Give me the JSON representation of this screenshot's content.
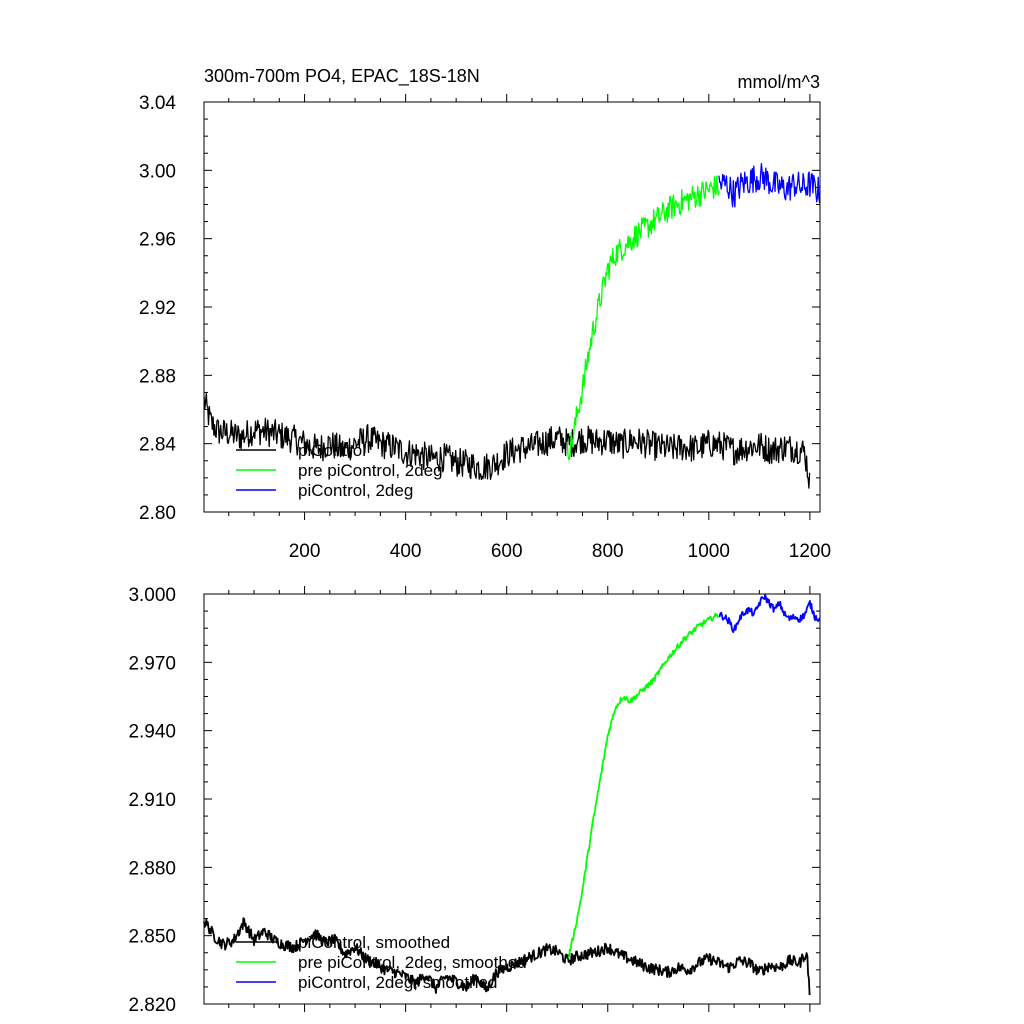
{
  "header": {
    "title": "300m-700m PO4, EPAC_18S-18N",
    "units": "mmol/m^3"
  },
  "colors": {
    "piControl": "#000000",
    "pre_piControl_2deg": "#00ff00",
    "piControl_2deg": "#0000ff"
  },
  "chart_data": [
    {
      "type": "line",
      "title": "300m-700m PO4, EPAC_18S-18N",
      "units_label": "mmol/m^3",
      "xlim": [
        1,
        1220
      ],
      "ylim": [
        2.8,
        3.04
      ],
      "x_tick_values": [
        200,
        400,
        600,
        800,
        1000,
        1200
      ],
      "x_tick_labels": [
        "200",
        "400",
        "600",
        "800",
        "1000",
        "1200"
      ],
      "y_tick_values": [
        2.8,
        2.84,
        2.88,
        2.92,
        2.96,
        3.0,
        3.04
      ],
      "y_tick_labels": [
        "2.80",
        "2.84",
        "2.88",
        "2.92",
        "2.96",
        "3.00",
        "3.04"
      ],
      "legend_position": "bottom-left",
      "series": [
        {
          "name": "piControl",
          "color": "#000000",
          "x": [
            1,
            15,
            30,
            50,
            75,
            100,
            125,
            150,
            175,
            200,
            225,
            250,
            275,
            300,
            325,
            350,
            375,
            400,
            425,
            450,
            475,
            500,
            525,
            550,
            575,
            600,
            625,
            650,
            675,
            700,
            725,
            750,
            775,
            800,
            825,
            850,
            875,
            900,
            925,
            950,
            975,
            1000,
            1025,
            1050,
            1075,
            1100,
            1125,
            1150,
            1175,
            1190,
            1200
          ],
          "y": [
            2.865,
            2.852,
            2.847,
            2.846,
            2.844,
            2.848,
            2.847,
            2.845,
            2.843,
            2.84,
            2.837,
            2.84,
            2.836,
            2.84,
            2.843,
            2.84,
            2.838,
            2.835,
            2.834,
            2.831,
            2.832,
            2.829,
            2.828,
            2.826,
            2.828,
            2.834,
            2.837,
            2.838,
            2.841,
            2.843,
            2.84,
            2.843,
            2.841,
            2.842,
            2.839,
            2.842,
            2.84,
            2.838,
            2.837,
            2.838,
            2.837,
            2.84,
            2.839,
            2.836,
            2.838,
            2.839,
            2.836,
            2.838,
            2.837,
            2.835,
            2.817
          ],
          "noise": 0.0085
        },
        {
          "name": "pre piControl, 2deg",
          "color": "#00ff00",
          "x": [
            720,
            730,
            740,
            750,
            760,
            770,
            780,
            790,
            800,
            815,
            830,
            845,
            860,
            875,
            890,
            905,
            920,
            935,
            950,
            965,
            980,
            995,
            1010,
            1020
          ],
          "y": [
            2.835,
            2.842,
            2.858,
            2.872,
            2.889,
            2.905,
            2.918,
            2.93,
            2.942,
            2.951,
            2.955,
            2.959,
            2.963,
            2.966,
            2.97,
            2.973,
            2.977,
            2.98,
            2.982,
            2.984,
            2.986,
            2.988,
            2.99,
            2.99
          ],
          "noise": 0.0075
        },
        {
          "name": "piControl, 2deg",
          "color": "#0000ff",
          "x": [
            1020,
            1035,
            1050,
            1065,
            1080,
            1095,
            1110,
            1125,
            1140,
            1155,
            1170,
            1185,
            1200,
            1215,
            1220
          ],
          "y": [
            2.992,
            2.992,
            2.986,
            2.992,
            2.994,
            2.996,
            2.996,
            2.992,
            2.99,
            2.989,
            2.992,
            2.99,
            2.992,
            2.988,
            2.988
          ],
          "noise": 0.0085
        }
      ],
      "legend": [
        "piControl",
        "pre piControl, 2deg",
        "piControl, 2deg"
      ]
    },
    {
      "type": "line",
      "xlim": [
        1,
        1220
      ],
      "ylim": [
        2.82,
        3.0
      ],
      "x_tick_values": [
        200,
        400,
        600,
        800,
        1000,
        1200
      ],
      "x_tick_labels": [],
      "y_tick_values": [
        2.82,
        2.85,
        2.88,
        2.91,
        2.94,
        2.97,
        3.0
      ],
      "y_tick_labels": [
        "2.820",
        "2.850",
        "2.880",
        "2.910",
        "2.940",
        "2.970",
        "3.000"
      ],
      "legend_position": "bottom-left",
      "series": [
        {
          "name": "piControl, smoothed",
          "color": "#000000",
          "x": [
            1,
            10,
            20,
            40,
            60,
            80,
            100,
            120,
            140,
            160,
            180,
            200,
            220,
            240,
            260,
            280,
            300,
            320,
            340,
            360,
            380,
            400,
            420,
            440,
            460,
            480,
            500,
            520,
            540,
            560,
            580,
            600,
            620,
            640,
            660,
            680,
            700,
            720,
            740,
            760,
            780,
            800,
            820,
            840,
            860,
            880,
            900,
            920,
            940,
            960,
            980,
            1000,
            1020,
            1040,
            1060,
            1080,
            1100,
            1120,
            1140,
            1160,
            1180,
            1190,
            1195,
            1200
          ],
          "y": [
            2.856,
            2.854,
            2.85,
            2.846,
            2.848,
            2.856,
            2.848,
            2.852,
            2.848,
            2.846,
            2.845,
            2.848,
            2.851,
            2.847,
            2.848,
            2.842,
            2.845,
            2.84,
            2.838,
            2.835,
            2.834,
            2.832,
            2.829,
            2.833,
            2.827,
            2.832,
            2.83,
            2.827,
            2.832,
            2.826,
            2.834,
            2.836,
            2.838,
            2.84,
            2.842,
            2.844,
            2.843,
            2.839,
            2.841,
            2.842,
            2.843,
            2.845,
            2.842,
            2.84,
            2.838,
            2.836,
            2.835,
            2.834,
            2.836,
            2.835,
            2.838,
            2.84,
            2.838,
            2.836,
            2.839,
            2.838,
            2.834,
            2.837,
            2.836,
            2.839,
            2.838,
            2.842,
            2.84,
            2.823
          ],
          "noise": 0.0025
        },
        {
          "name": "pre piControl, 2deg, smoothed",
          "color": "#00ff00",
          "x": [
            722,
            730,
            740,
            750,
            760,
            770,
            780,
            790,
            800,
            815,
            830,
            845,
            860,
            875,
            890,
            905,
            920,
            935,
            950,
            965,
            980,
            995,
            1010,
            1020
          ],
          "y": [
            2.84,
            2.848,
            2.858,
            2.87,
            2.885,
            2.899,
            2.912,
            2.925,
            2.938,
            2.95,
            2.955,
            2.953,
            2.956,
            2.959,
            2.962,
            2.967,
            2.972,
            2.976,
            2.98,
            2.983,
            2.986,
            2.988,
            2.99,
            2.991
          ],
          "noise": 0.0012
        },
        {
          "name": "piControl, 2deg, smoothed",
          "color": "#0000ff",
          "x": [
            1020,
            1030,
            1040,
            1050,
            1060,
            1070,
            1080,
            1090,
            1100,
            1110,
            1120,
            1130,
            1140,
            1150,
            1160,
            1170,
            1180,
            1190,
            1200,
            1210,
            1220
          ],
          "y": [
            2.991,
            2.99,
            2.988,
            2.984,
            2.989,
            2.992,
            2.993,
            2.991,
            2.996,
            2.999,
            2.996,
            2.993,
            2.996,
            2.991,
            2.989,
            2.99,
            2.989,
            2.991,
            2.996,
            2.99,
            2.989
          ],
          "noise": 0.0015
        }
      ],
      "legend": [
        "piControl, smoothed",
        "pre piControl, 2deg, smoothed",
        "piControl, 2deg, smoothed"
      ]
    }
  ]
}
